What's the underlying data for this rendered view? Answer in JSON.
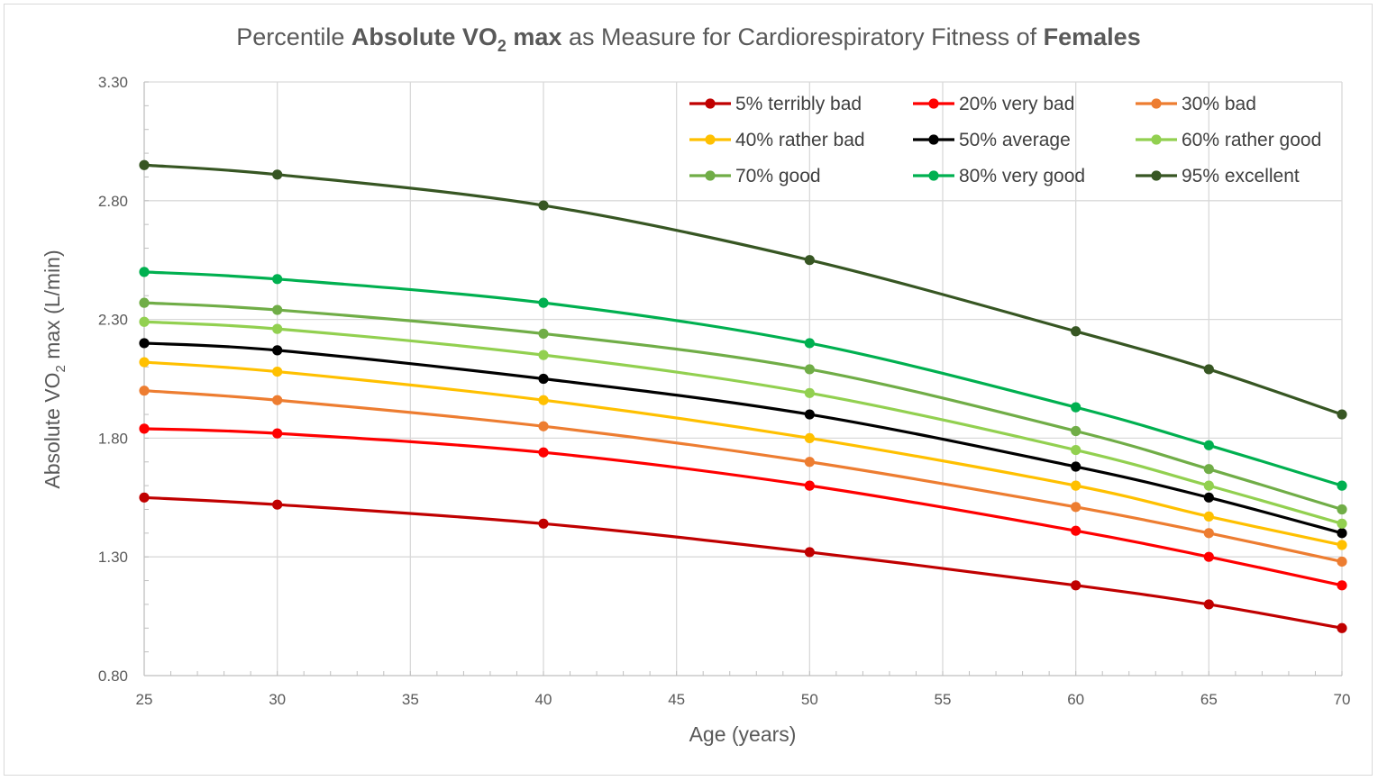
{
  "chart_data": {
    "type": "line",
    "title_parts": [
      {
        "text": "Percentile ",
        "bold": false
      },
      {
        "text": "Absolute VO",
        "bold": true
      },
      {
        "text": "2",
        "bold": true,
        "sub": true
      },
      {
        "text": " max",
        "bold": true
      },
      {
        "text": " as Measure for Cardiorespiratory Fitness of ",
        "bold": false
      },
      {
        "text": "Females",
        "bold": true
      }
    ],
    "xlabel": "Age (years)",
    "ylabel_parts": [
      {
        "text": "Absolute VO",
        "sub": false
      },
      {
        "text": "2",
        "sub": true
      },
      {
        "text": " max (L/min)",
        "sub": false
      }
    ],
    "xlim": [
      25,
      70
    ],
    "ylim": [
      0.8,
      3.3
    ],
    "x_ticks": [
      "25",
      "30",
      "35",
      "40",
      "45",
      "50",
      "55",
      "60",
      "65",
      "70"
    ],
    "y_ticks": [
      "0.80",
      "1.30",
      "1.80",
      "2.30",
      "2.80",
      "3.30"
    ],
    "grid": true,
    "legend_position": "top-right inside plot, 3 columns",
    "x": [
      25,
      30,
      40,
      50,
      60,
      65,
      70
    ],
    "series": [
      {
        "name": "5% terribly bad",
        "color": "#c00000",
        "values": [
          1.55,
          1.52,
          1.44,
          1.32,
          1.18,
          1.1,
          1.0
        ]
      },
      {
        "name": "20% very bad",
        "color": "#ff0000",
        "values": [
          1.84,
          1.82,
          1.74,
          1.6,
          1.41,
          1.3,
          1.18
        ]
      },
      {
        "name": "30% bad",
        "color": "#ed7d31",
        "values": [
          2.0,
          1.96,
          1.85,
          1.7,
          1.51,
          1.4,
          1.28
        ]
      },
      {
        "name": "40% rather bad",
        "color": "#ffc000",
        "values": [
          2.12,
          2.08,
          1.96,
          1.8,
          1.6,
          1.47,
          1.35
        ]
      },
      {
        "name": "50% average",
        "color": "#000000",
        "values": [
          2.2,
          2.17,
          2.05,
          1.9,
          1.68,
          1.55,
          1.4
        ]
      },
      {
        "name": "60% rather good",
        "color": "#92d050",
        "values": [
          2.29,
          2.26,
          2.15,
          1.99,
          1.75,
          1.6,
          1.44
        ]
      },
      {
        "name": "70% good",
        "color": "#70ad47",
        "values": [
          2.37,
          2.34,
          2.24,
          2.09,
          1.83,
          1.67,
          1.5
        ]
      },
      {
        "name": "80% very good",
        "color": "#00b050",
        "values": [
          2.5,
          2.47,
          2.37,
          2.2,
          1.93,
          1.77,
          1.6
        ]
      },
      {
        "name": "95% excellent",
        "color": "#375623",
        "values": [
          2.95,
          2.91,
          2.78,
          2.55,
          2.25,
          2.09,
          1.9
        ]
      }
    ]
  }
}
